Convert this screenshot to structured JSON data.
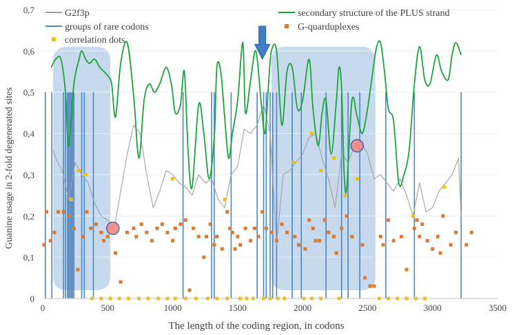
{
  "chart_data": {
    "type": "line",
    "xlabel": "The length of the coding region, in codons",
    "ylabel": "Guanine usage in 2-fold degenerated sites",
    "xlim": [
      0,
      3500
    ],
    "ylim": [
      0,
      0.7
    ],
    "x_ticks": [
      0,
      500,
      1000,
      1500,
      2000,
      2500,
      3000,
      3500
    ],
    "x_tick_labels": [
      "0",
      "500",
      "1000",
      "1500",
      "2000",
      "2500",
      "3000",
      "3500"
    ],
    "y_ticks": [
      0,
      0.1,
      0.2,
      0.3,
      0.4,
      0.5,
      0.6,
      0.7
    ],
    "y_tick_labels": [
      "0",
      "0,1",
      "0,2",
      "0,3",
      "0,4",
      "0,5",
      "0,6",
      "0,7"
    ],
    "legend": [
      {
        "key": "g2f3p",
        "label": "G2f3p",
        "color": "#a0a0a0",
        "marker": "line"
      },
      {
        "key": "secondary",
        "label": "secondary structure of the PLUS strand",
        "color": "#1aa33a",
        "marker": "line"
      },
      {
        "key": "rare",
        "label": "groups of rare codons",
        "color": "#4a86c8",
        "marker": "line"
      },
      {
        "key": "gq",
        "label": "G-quarduplexes",
        "color": "#e0782c",
        "marker": "square"
      },
      {
        "key": "corr",
        "label": "correlation dots",
        "color": "#f5c000",
        "marker": "square"
      }
    ],
    "series": [
      {
        "name": "G2f3p",
        "color": "#a0a0a0",
        "x": [
          80,
          100,
          150,
          200,
          250,
          300,
          350,
          400,
          450,
          500,
          550,
          600,
          650,
          700,
          750,
          800,
          850,
          900,
          950,
          1000,
          1050,
          1100,
          1150,
          1200,
          1250,
          1300,
          1350,
          1400,
          1450,
          1500,
          1550,
          1600,
          1650,
          1700,
          1750,
          1800,
          1850,
          1900,
          1950,
          2000,
          2050,
          2100,
          2150,
          2200,
          2250,
          2300,
          2350,
          2400,
          2450,
          2500,
          2550,
          2600,
          2650,
          2700,
          2750,
          2800,
          2850,
          2900,
          2950,
          3000,
          3050,
          3100,
          3150,
          3200,
          3220
        ],
        "y": [
          0.36,
          0.34,
          0.31,
          0.24,
          0.33,
          0.3,
          0.28,
          0.23,
          0.2,
          0.19,
          0.17,
          0.26,
          0.35,
          0.42,
          0.4,
          0.3,
          0.22,
          0.26,
          0.31,
          0.3,
          0.28,
          0.27,
          0.25,
          0.3,
          0.28,
          0.29,
          0.24,
          0.22,
          0.3,
          0.32,
          0.41,
          0.4,
          0.42,
          0.47,
          0.4,
          0.13,
          0.3,
          0.31,
          0.33,
          0.35,
          0.39,
          0.4,
          0.34,
          0.29,
          0.22,
          0.35,
          0.33,
          0.37,
          0.38,
          0.35,
          0.29,
          0.3,
          0.28,
          0.26,
          0.29,
          0.25,
          0.2,
          0.28,
          0.21,
          0.22,
          0.26,
          0.28,
          0.3,
          0.34,
          0.2
        ]
      },
      {
        "name": "secondary structure of the PLUS strand",
        "color": "#1aa33a",
        "x": [
          65,
          100,
          140,
          175,
          200,
          240,
          280,
          300,
          330,
          360,
          400,
          440,
          500,
          530,
          560,
          600,
          650,
          700,
          740,
          780,
          820,
          860,
          900,
          950,
          990,
          1020,
          1060,
          1090,
          1120,
          1150,
          1200,
          1240,
          1280,
          1320,
          1340,
          1370,
          1400,
          1430,
          1460,
          1500,
          1540,
          1560,
          1600,
          1640,
          1680,
          1710,
          1740,
          1760,
          1800,
          1840,
          1880,
          1920,
          1960,
          2000,
          2050,
          2080,
          2120,
          2150,
          2180,
          2220,
          2260,
          2280,
          2300,
          2320,
          2340,
          2380,
          2420,
          2460,
          2500,
          2540,
          2570,
          2600,
          2630,
          2660,
          2700,
          2740,
          2780,
          2820,
          2860,
          2900,
          2940,
          2980,
          3030,
          3070,
          3120,
          3150,
          3180,
          3220
        ],
        "y": [
          0.56,
          0.58,
          0.58,
          0.5,
          0.37,
          0.52,
          0.58,
          0.6,
          0.58,
          0.57,
          0.58,
          0.56,
          0.54,
          0.52,
          0.44,
          0.57,
          0.62,
          0.49,
          0.34,
          0.48,
          0.52,
          0.5,
          0.52,
          0.56,
          0.52,
          0.45,
          0.47,
          0.55,
          0.35,
          0.27,
          0.47,
          0.4,
          0.29,
          0.39,
          0.56,
          0.55,
          0.44,
          0.34,
          0.4,
          0.48,
          0.62,
          0.45,
          0.53,
          0.6,
          0.48,
          0.4,
          0.53,
          0.6,
          0.6,
          0.42,
          0.55,
          0.56,
          0.46,
          0.48,
          0.58,
          0.46,
          0.37,
          0.45,
          0.48,
          0.35,
          0.48,
          0.56,
          0.51,
          0.3,
          0.27,
          0.48,
          0.44,
          0.4,
          0.46,
          0.55,
          0.61,
          0.62,
          0.55,
          0.46,
          0.43,
          0.28,
          0.3,
          0.36,
          0.52,
          0.61,
          0.53,
          0.52,
          0.59,
          0.55,
          0.53,
          0.59,
          0.62,
          0.59
        ]
      }
    ],
    "rare_codon_groups_x": [
      20,
      70,
      160,
      175,
      190,
      200,
      210,
      220,
      230,
      240,
      300,
      320,
      390,
      1080,
      1300,
      1320,
      1450,
      1650,
      1700,
      1720,
      1750,
      1770,
      1800,
      1920,
      1990,
      2180,
      2300,
      2350,
      2440,
      2640,
      2860,
      3220
    ],
    "g_quadruplexes": [
      [
        10,
        0.13
      ],
      [
        30,
        0.21
      ],
      [
        60,
        0.14
      ],
      [
        90,
        0.16
      ],
      [
        120,
        0.21
      ],
      [
        160,
        0.21
      ],
      [
        200,
        0.2
      ],
      [
        240,
        0.17
      ],
      [
        270,
        0.07
      ],
      [
        310,
        0.15
      ],
      [
        340,
        0.21
      ],
      [
        370,
        0.17
      ],
      [
        410,
        0.18
      ],
      [
        450,
        0.16
      ],
      [
        470,
        0.14
      ],
      [
        500,
        0.15
      ],
      [
        560,
        0.11
      ],
      [
        600,
        0.04
      ],
      [
        650,
        0.16
      ],
      [
        700,
        0.17
      ],
      [
        720,
        0.15
      ],
      [
        760,
        0.18
      ],
      [
        800,
        0.16
      ],
      [
        840,
        0.14
      ],
      [
        880,
        0.17
      ],
      [
        920,
        0.18
      ],
      [
        960,
        0.16
      ],
      [
        1000,
        0.14
      ],
      [
        1020,
        0.17
      ],
      [
        1060,
        0.18
      ],
      [
        1100,
        0.19
      ],
      [
        1130,
        0.02
      ],
      [
        1160,
        0.17
      ],
      [
        1200,
        0.15
      ],
      [
        1240,
        0.1
      ],
      [
        1260,
        0.15
      ],
      [
        1290,
        0.18
      ],
      [
        1320,
        0.13
      ],
      [
        1340,
        0.15
      ],
      [
        1380,
        0.12
      ],
      [
        1420,
        0.21
      ],
      [
        1440,
        0.17
      ],
      [
        1460,
        0.16
      ],
      [
        1480,
        0.12
      ],
      [
        1500,
        0.15
      ],
      [
        1520,
        0.13
      ],
      [
        1560,
        0.17
      ],
      [
        1600,
        0.14
      ],
      [
        1630,
        0.17
      ],
      [
        1660,
        0.15
      ],
      [
        1690,
        0.21
      ],
      [
        1720,
        0.17
      ],
      [
        1760,
        0.16
      ],
      [
        1800,
        0.14
      ],
      [
        1840,
        0.18
      ],
      [
        1880,
        0.16
      ],
      [
        1940,
        0.15
      ],
      [
        1970,
        0.13
      ],
      [
        2020,
        0.12
      ],
      [
        2050,
        0.19
      ],
      [
        2080,
        0.17
      ],
      [
        2100,
        0.14
      ],
      [
        2130,
        0.14
      ],
      [
        2170,
        0.19
      ],
      [
        2200,
        0.16
      ],
      [
        2240,
        0.15
      ],
      [
        2260,
        0.11
      ],
      [
        2300,
        0.17
      ],
      [
        2340,
        0.2
      ],
      [
        2380,
        0.15
      ],
      [
        2420,
        0.37
      ],
      [
        2460,
        0.13
      ],
      [
        2480,
        0.05
      ],
      [
        2520,
        0.03
      ],
      [
        2550,
        0.03
      ],
      [
        2600,
        0.15
      ],
      [
        2620,
        0.13
      ],
      [
        2660,
        0.19
      ],
      [
        2700,
        0.14
      ],
      [
        2760,
        0.15
      ],
      [
        2800,
        0.07
      ],
      [
        2860,
        0.17
      ],
      [
        2880,
        0.19
      ],
      [
        2900,
        0.15
      ],
      [
        2920,
        0.18
      ],
      [
        2960,
        0.14
      ],
      [
        3000,
        0.12
      ],
      [
        3040,
        0.15
      ],
      [
        3060,
        0.11
      ],
      [
        3080,
        0.2
      ],
      [
        3140,
        0.13
      ],
      [
        3180,
        0.16
      ],
      [
        3260,
        0.13
      ],
      [
        3300,
        0.16
      ]
    ],
    "correlation_dots": [
      [
        220,
        0.24
      ],
      [
        280,
        0.31
      ],
      [
        330,
        0.3
      ],
      [
        530,
        0.17
      ],
      [
        1000,
        0.29
      ],
      [
        1400,
        0.24
      ],
      [
        1930,
        0.33
      ],
      [
        2070,
        0.4
      ],
      [
        2140,
        0.31
      ],
      [
        2240,
        0.34
      ],
      [
        2330,
        0.25
      ],
      [
        2420,
        0.29
      ],
      [
        2850,
        0.2
      ],
      [
        3090,
        0.27
      ],
      [
        380,
        0.0
      ],
      [
        450,
        0.0
      ],
      [
        520,
        0.0
      ],
      [
        590,
        0.0
      ],
      [
        660,
        0.0
      ],
      [
        740,
        0.0
      ],
      [
        810,
        0.0
      ],
      [
        890,
        0.0
      ],
      [
        960,
        0.0
      ],
      [
        1020,
        0.0
      ],
      [
        1100,
        0.0
      ],
      [
        1180,
        0.0
      ],
      [
        1270,
        0.0
      ],
      [
        1340,
        0.0
      ],
      [
        1420,
        0.0
      ],
      [
        1520,
        0.0
      ],
      [
        1570,
        0.0
      ],
      [
        1620,
        0.0
      ],
      [
        1700,
        0.0
      ],
      [
        1750,
        0.0
      ],
      [
        1810,
        0.0
      ],
      [
        1860,
        0.0
      ],
      [
        2010,
        0.0
      ],
      [
        2070,
        0.0
      ],
      [
        2140,
        0.0
      ],
      [
        2280,
        0.0
      ],
      [
        2590,
        0.0
      ],
      [
        2660,
        0.0
      ],
      [
        2730,
        0.0
      ],
      [
        2800,
        0.0
      ],
      [
        2870,
        0.0
      ],
      [
        2940,
        0.0
      ]
    ],
    "highlight_regions_x": [
      [
        80,
        520
      ],
      [
        1760,
        2560
      ]
    ],
    "circled_points": [
      [
        540,
        0.17
      ],
      [
        2420,
        0.37
      ]
    ],
    "arrow_at": {
      "x": 1690,
      "y_top": 0.66,
      "y_bottom": 0.58
    }
  }
}
